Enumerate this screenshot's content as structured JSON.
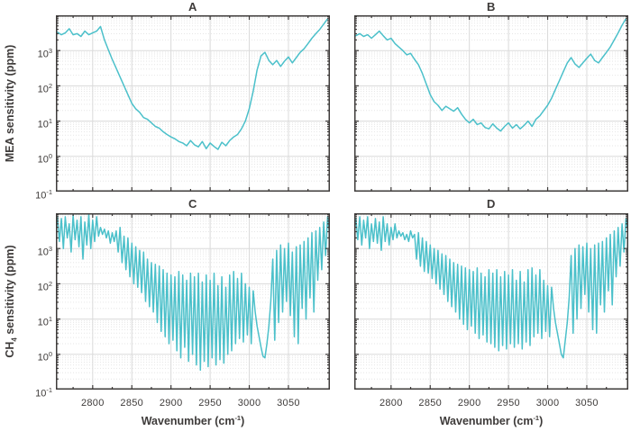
{
  "figure": {
    "background": "#ffffff",
    "line_color": "#4BC0CA",
    "frame_color": "#3E3B3A",
    "text_color": "#3E3B3A",
    "grid_major_color": "#dadada",
    "grid_minor_color": "#e6e6e6"
  },
  "chart_data": {
    "type": "line",
    "title": "",
    "legend": "none",
    "grid": true,
    "xlim": [
      2753,
      3103
    ],
    "ylim_log10": [
      -1,
      4
    ],
    "x_ticks": [
      2800,
      2850,
      2900,
      2950,
      3000,
      3050
    ],
    "x_minor_ticks": [
      2775,
      2825,
      2875,
      2925,
      2975,
      3025,
      3075
    ],
    "y_tick_exponents": [
      3,
      2,
      1,
      0,
      -1
    ],
    "xlabel": {
      "pre": "Wavenumber (cm",
      "sup": "-1",
      "post": ")"
    },
    "ylabels": [
      {
        "pre": "MEA",
        "sub": "",
        "post": " sensitivity (ppm)"
      },
      {
        "pre": "CH",
        "sub": "4",
        "post": " sensitivity (ppm)"
      }
    ],
    "panels": [
      {
        "id": "A",
        "title": "A",
        "row": 0,
        "col": 0,
        "x_start": 2755,
        "x_step": 5,
        "log10_values": [
          3.52,
          3.45,
          3.5,
          3.62,
          3.45,
          3.48,
          3.4,
          3.55,
          3.45,
          3.5,
          3.55,
          3.68,
          3.3,
          3.02,
          2.75,
          2.5,
          2.25,
          2.0,
          1.75,
          1.5,
          1.35,
          1.25,
          1.1,
          1.05,
          0.95,
          0.85,
          0.8,
          0.7,
          0.62,
          0.55,
          0.5,
          0.42,
          0.38,
          0.3,
          0.45,
          0.33,
          0.27,
          0.42,
          0.22,
          0.38,
          0.28,
          0.2,
          0.4,
          0.3,
          0.45,
          0.55,
          0.62,
          0.78,
          1.0,
          1.35,
          1.85,
          2.45,
          2.85,
          2.95,
          2.72,
          2.6,
          2.72,
          2.55,
          2.7,
          2.82,
          2.65,
          2.8,
          2.95,
          3.05,
          3.2,
          3.35,
          3.48,
          3.6,
          3.75,
          3.9
        ]
      },
      {
        "id": "B",
        "title": "B",
        "row": 0,
        "col": 1,
        "x_start": 2755,
        "x_step": 5,
        "log10_values": [
          3.42,
          3.48,
          3.4,
          3.45,
          3.35,
          3.45,
          3.55,
          3.42,
          3.3,
          3.35,
          3.2,
          3.1,
          3.0,
          2.88,
          2.92,
          2.75,
          2.6,
          2.35,
          2.05,
          1.75,
          1.55,
          1.45,
          1.3,
          1.42,
          1.35,
          1.28,
          1.38,
          1.2,
          1.05,
          0.95,
          1.05,
          0.9,
          0.95,
          0.82,
          0.78,
          0.92,
          0.8,
          0.72,
          0.85,
          0.95,
          0.8,
          0.9,
          0.78,
          0.88,
          1.0,
          0.85,
          1.05,
          1.15,
          1.3,
          1.45,
          1.65,
          1.9,
          2.15,
          2.4,
          2.65,
          2.8,
          2.62,
          2.52,
          2.65,
          2.78,
          2.9,
          2.72,
          2.65,
          2.8,
          2.95,
          3.1,
          3.3,
          3.5,
          3.72,
          3.9
        ]
      },
      {
        "id": "C",
        "title": "C",
        "row": 1,
        "col": 0,
        "x_start": 2755,
        "x_step": 2.5,
        "log10_values": [
          3.9,
          3.2,
          3.85,
          3.0,
          3.9,
          3.3,
          3.7,
          2.9,
          3.95,
          3.25,
          3.8,
          3.05,
          3.9,
          2.7,
          3.75,
          3.1,
          3.95,
          3.0,
          3.8,
          3.2,
          3.9,
          3.35,
          3.6,
          3.4,
          3.55,
          3.3,
          3.5,
          3.15,
          3.45,
          3.2,
          3.5,
          2.9,
          3.6,
          2.6,
          3.35,
          2.4,
          3.3,
          2.2,
          3.15,
          2.0,
          3.05,
          1.9,
          2.95,
          1.75,
          2.9,
          1.5,
          2.7,
          1.35,
          2.6,
          1.2,
          2.55,
          0.9,
          2.5,
          0.65,
          2.4,
          0.5,
          2.3,
          0.3,
          2.25,
          0.4,
          2.2,
          0.1,
          2.35,
          -0.1,
          2.25,
          0.2,
          2.1,
          -0.2,
          2.3,
          0.0,
          2.2,
          -0.3,
          2.3,
          -0.45,
          2.05,
          -0.2,
          2.25,
          -0.35,
          2.1,
          -0.1,
          2.3,
          -0.3,
          1.95,
          -0.15,
          2.2,
          -0.25,
          1.9,
          0.0,
          2.25,
          0.1,
          2.35,
          0.3,
          2.15,
          0.45,
          2.3,
          0.35,
          2.0,
          0.55,
          1.9,
          0.3,
          1.8,
          1.2,
          0.8,
          0.5,
          0.2,
          -0.05,
          -0.1,
          0.3,
          0.8,
          1.5,
          2.7,
          0.4,
          2.95,
          0.9,
          3.1,
          1.2,
          3.0,
          1.5,
          3.15,
          1.1,
          2.9,
          0.5,
          3.05,
          0.3,
          3.1,
          1.3,
          3.2,
          1.0,
          3.3,
          1.6,
          3.45,
          1.2,
          3.5,
          2.1,
          3.6,
          2.4,
          3.75,
          2.8,
          3.9,
          3.4
        ]
      },
      {
        "id": "D",
        "title": "D",
        "row": 1,
        "col": 1,
        "x_start": 2755,
        "x_step": 2.5,
        "log10_values": [
          3.85,
          3.25,
          3.9,
          3.1,
          3.8,
          3.3,
          3.9,
          3.0,
          3.7,
          3.2,
          3.85,
          3.15,
          3.75,
          2.95,
          3.9,
          3.2,
          3.7,
          3.1,
          3.6,
          3.25,
          3.7,
          3.3,
          3.5,
          3.35,
          3.45,
          3.25,
          3.4,
          3.2,
          3.5,
          3.3,
          3.4,
          2.7,
          3.45,
          2.5,
          3.3,
          2.35,
          3.2,
          2.3,
          3.1,
          2.15,
          3.0,
          2.0,
          2.95,
          1.85,
          2.85,
          1.7,
          2.8,
          1.5,
          2.7,
          1.35,
          2.6,
          1.2,
          2.55,
          1.0,
          2.5,
          0.85,
          2.45,
          0.7,
          2.4,
          0.8,
          2.35,
          0.6,
          2.45,
          0.45,
          2.3,
          0.55,
          2.2,
          0.35,
          2.4,
          0.3,
          2.3,
          0.2,
          2.4,
          0.1,
          2.2,
          0.25,
          2.35,
          0.15,
          2.25,
          0.3,
          2.4,
          0.2,
          2.1,
          0.3,
          2.35,
          0.15,
          2.05,
          0.35,
          2.4,
          0.25,
          2.45,
          0.5,
          2.25,
          0.6,
          2.4,
          0.45,
          2.1,
          0.65,
          1.95,
          0.5,
          1.9,
          1.3,
          0.9,
          0.6,
          0.3,
          0.0,
          -0.1,
          0.4,
          0.9,
          1.6,
          2.8,
          0.6,
          3.0,
          1.0,
          3.1,
          1.3,
          3.05,
          1.7,
          3.15,
          1.2,
          3.0,
          0.7,
          3.1,
          0.6,
          3.15,
          1.4,
          3.2,
          1.2,
          3.3,
          1.8,
          3.4,
          1.4,
          3.5,
          2.2,
          3.6,
          2.5,
          3.7,
          2.9,
          3.85,
          3.5
        ]
      }
    ]
  }
}
